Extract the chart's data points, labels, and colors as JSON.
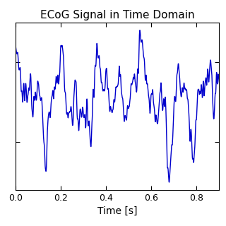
{
  "title": "ECoG Signal in Time Domain",
  "xlabel": "Time [s]",
  "xlim": [
    0,
    0.9
  ],
  "xticks": [
    0,
    0.2,
    0.4,
    0.6,
    0.8
  ],
  "line_color": "#0000cc",
  "line_width": 1.0,
  "bg_color": "#ffffff",
  "title_fontsize": 11,
  "label_fontsize": 10,
  "tick_fontsize": 9,
  "seed": 7,
  "n_points": 1000,
  "duration": 0.9
}
